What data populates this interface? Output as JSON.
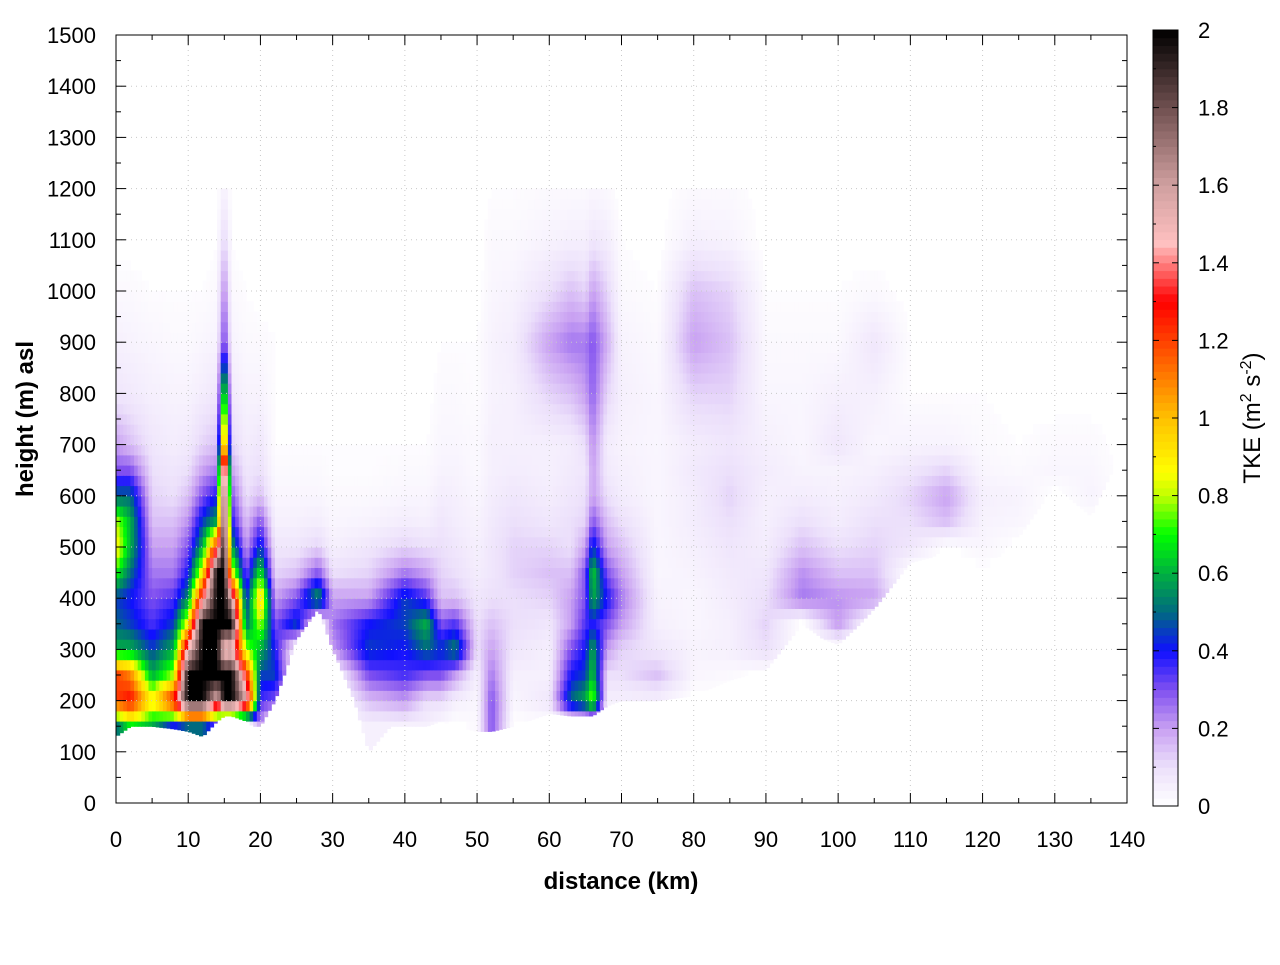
{
  "chart_data": {
    "type": "heatmap",
    "xlabel": "distance (km)",
    "ylabel": "height (m) asl",
    "colorbar_label": "TKE (m",
    "colorbar_label_sup1": "2",
    "colorbar_label_mid": " s",
    "colorbar_label_sup2": "-2",
    "colorbar_label_end": ")",
    "xlim": [
      0,
      140
    ],
    "ylim": [
      0,
      1500
    ],
    "zlim": [
      0,
      2
    ],
    "grid": true,
    "xticks": [
      "0",
      "10",
      "20",
      "30",
      "40",
      "50",
      "60",
      "70",
      "80",
      "90",
      "100",
      "110",
      "120",
      "130",
      "140"
    ],
    "yticks": [
      "0",
      "100",
      "200",
      "300",
      "400",
      "500",
      "600",
      "700",
      "800",
      "900",
      "1000",
      "1100",
      "1200",
      "1300",
      "1400",
      "1500"
    ],
    "zticks": [
      "0",
      "0.2",
      "0.4",
      "0.6",
      "0.8",
      "1",
      "1.2",
      "1.4",
      "1.6",
      "1.8",
      "2"
    ],
    "palette": [
      [
        0,
        "#ffffff"
      ],
      [
        0.1,
        "#ece0fb"
      ],
      [
        0.2,
        "#c8a0f2"
      ],
      [
        0.3,
        "#8050f0"
      ],
      [
        0.4,
        "#1010ff"
      ],
      [
        0.5,
        "#006a80"
      ],
      [
        0.6,
        "#00b040"
      ],
      [
        0.7,
        "#00ff00"
      ],
      [
        0.8,
        "#c0ff00"
      ],
      [
        0.86,
        "#ffff00"
      ],
      [
        1.0,
        "#ffc000"
      ],
      [
        1.1,
        "#ff8000"
      ],
      [
        1.2,
        "#ff4000"
      ],
      [
        1.3,
        "#ff0000"
      ],
      [
        1.45,
        "#ffc0c0"
      ],
      [
        1.6,
        "#d0a0a0"
      ],
      [
        1.8,
        "#705050"
      ],
      [
        2.0,
        "#000000"
      ]
    ],
    "x": [
      0,
      2,
      5,
      8,
      10,
      12,
      14,
      15,
      16,
      18,
      20,
      22,
      25,
      28,
      30,
      35,
      40,
      43,
      45,
      47,
      50,
      52,
      55,
      60,
      63,
      65,
      66,
      68,
      70,
      75,
      80,
      85,
      90,
      95,
      100,
      105,
      110,
      115,
      120,
      125,
      130,
      135,
      140
    ],
    "y": [
      150,
      200,
      250,
      300,
      350,
      400,
      450,
      500,
      550,
      600,
      650,
      700,
      800,
      900,
      1000,
      1100,
      1200
    ],
    "z": [
      [
        0.5,
        0.7,
        0.6,
        0.4,
        0.5,
        0.5,
        0.3,
        0,
        0,
        0,
        0.2,
        0,
        0,
        0,
        0,
        0.05,
        0.05,
        0.05,
        0.02,
        0,
        0.02,
        0.3,
        0,
        0,
        0,
        0,
        0,
        0,
        0,
        0,
        0,
        0,
        0,
        0,
        0,
        0,
        0,
        0,
        0,
        0,
        0,
        0,
        0
      ],
      [
        1.2,
        1.3,
        0.9,
        1.3,
        2,
        2,
        1.5,
        2,
        2,
        1.6,
        0.35,
        0.3,
        0,
        0,
        0,
        0.15,
        0.2,
        0.1,
        0.1,
        0.05,
        0.03,
        0.3,
        0.03,
        0.08,
        0.5,
        0.6,
        0.8,
        0.05,
        0.05,
        0.05,
        0,
        0,
        0,
        0,
        0,
        0,
        0,
        0,
        0,
        0,
        0,
        0,
        0
      ],
      [
        1.2,
        1.1,
        0.6,
        0.8,
        2,
        2,
        2,
        2,
        2,
        1.3,
        0.45,
        0.45,
        0,
        0,
        0,
        0.3,
        0.35,
        0.3,
        0.3,
        0.2,
        0.05,
        0.25,
        0.05,
        0.05,
        0.4,
        0.45,
        0.65,
        0.1,
        0.1,
        0.15,
        0.03,
        0.02,
        0,
        0,
        0,
        0,
        0,
        0,
        0,
        0,
        0,
        0,
        0
      ],
      [
        0.6,
        0.6,
        0.45,
        0.6,
        1.5,
        2,
        2,
        1.4,
        1.5,
        0.8,
        0.6,
        0.4,
        0,
        0,
        0.2,
        0.45,
        0.4,
        0.5,
        0.45,
        0.55,
        0.1,
        0.2,
        0.08,
        0.05,
        0.3,
        0.4,
        0.6,
        0.2,
        0.12,
        0.08,
        0.04,
        0.05,
        0.1,
        0,
        0,
        0,
        0,
        0,
        0,
        0,
        0,
        0,
        0
      ],
      [
        0.5,
        0.45,
        0.35,
        0.45,
        0.9,
        2,
        2,
        2,
        2,
        0.5,
        0.8,
        0.3,
        0.45,
        0,
        0.25,
        0.4,
        0.45,
        0.6,
        0.3,
        0.35,
        0.1,
        0.15,
        0.1,
        0.08,
        0.2,
        0.35,
        0.4,
        0.3,
        0.2,
        0.05,
        0.03,
        0.05,
        0.12,
        0,
        0.2,
        0,
        0,
        0,
        0,
        0,
        0,
        0,
        0
      ],
      [
        0.45,
        0.4,
        0.3,
        0.35,
        0.55,
        1.4,
        2,
        2,
        1.6,
        0.4,
        1.0,
        0.2,
        0.3,
        0.6,
        0.2,
        0.2,
        0.45,
        0.35,
        0.15,
        0.15,
        0.08,
        0.1,
        0.1,
        0.12,
        0.2,
        0.3,
        0.6,
        0.4,
        0.25,
        0.04,
        0.03,
        0.06,
        0.1,
        0.25,
        0.22,
        0.2,
        0,
        0,
        0,
        0,
        0,
        0,
        0
      ],
      [
        0.7,
        0.5,
        0.25,
        0.25,
        0.4,
        0.9,
        2,
        2,
        0.9,
        0.3,
        0.7,
        0.12,
        0.15,
        0.3,
        0.1,
        0.12,
        0.25,
        0.2,
        0.12,
        0.1,
        0.06,
        0.08,
        0.12,
        0.15,
        0.15,
        0.3,
        0.65,
        0.3,
        0.2,
        0.03,
        0.04,
        0.07,
        0.08,
        0.22,
        0.15,
        0.15,
        0,
        0,
        0,
        0,
        0,
        0,
        0
      ],
      [
        0.9,
        0.6,
        0.2,
        0.2,
        0.3,
        0.6,
        1.3,
        2,
        0.6,
        0.2,
        0.45,
        0.08,
        0.08,
        0.12,
        0.05,
        0.08,
        0.12,
        0.1,
        0.1,
        0.08,
        0.05,
        0.08,
        0.12,
        0.12,
        0.1,
        0.2,
        0.45,
        0.2,
        0.15,
        0.03,
        0.05,
        0.08,
        0.06,
        0.15,
        0.1,
        0.12,
        0.08,
        0,
        0.03,
        0,
        0,
        0,
        0
      ],
      [
        0.8,
        0.6,
        0.15,
        0.15,
        0.22,
        0.45,
        0.6,
        2,
        0.4,
        0.15,
        0.3,
        0.05,
        0.05,
        0.06,
        0.03,
        0.04,
        0.06,
        0.05,
        0.08,
        0.06,
        0.04,
        0.07,
        0.1,
        0.08,
        0.1,
        0.12,
        0.3,
        0.15,
        0.1,
        0.03,
        0.06,
        0.1,
        0.05,
        0.1,
        0.06,
        0.1,
        0.1,
        0.15,
        0.04,
        0.03,
        0,
        0,
        0
      ],
      [
        0.5,
        0.5,
        0.12,
        0.1,
        0.15,
        0.3,
        0.4,
        2,
        0.3,
        0.1,
        0.15,
        0.03,
        0.03,
        0.03,
        0.02,
        0.02,
        0.03,
        0.03,
        0.06,
        0.05,
        0.03,
        0.06,
        0.08,
        0.06,
        0.08,
        0.1,
        0.2,
        0.1,
        0.06,
        0.03,
        0.06,
        0.12,
        0.05,
        0.06,
        0.05,
        0.07,
        0.12,
        0.2,
        0.05,
        0.04,
        0,
        0.04,
        0
      ],
      [
        0.3,
        0.3,
        0.1,
        0.08,
        0.1,
        0.2,
        0.25,
        1.8,
        0.2,
        0.08,
        0.1,
        0.02,
        0.02,
        0.02,
        0.01,
        0.01,
        0.02,
        0.02,
        0.04,
        0.04,
        0.02,
        0.05,
        0.06,
        0.05,
        0.07,
        0.08,
        0.2,
        0.07,
        0.05,
        0.03,
        0.07,
        0.1,
        0.06,
        0.04,
        0.04,
        0.05,
        0.08,
        0.12,
        0.03,
        0.02,
        0.03,
        0.03,
        0
      ],
      [
        0.2,
        0.15,
        0.08,
        0.06,
        0.07,
        0.12,
        0.15,
        1.2,
        0.12,
        0.06,
        0.08,
        0.01,
        0.01,
        0.01,
        0.01,
        0.01,
        0.01,
        0.01,
        0.03,
        0.03,
        0.02,
        0.05,
        0.05,
        0.05,
        0.06,
        0.1,
        0.22,
        0.06,
        0.04,
        0.03,
        0.06,
        0.08,
        0.05,
        0.03,
        0.08,
        0.03,
        0.04,
        0.04,
        0.02,
        0.01,
        0.02,
        0.02,
        0
      ],
      [
        0.08,
        0.07,
        0.05,
        0.04,
        0.04,
        0.06,
        0.08,
        0.8,
        0.07,
        0.04,
        0.04,
        0.01,
        0,
        0,
        0,
        0,
        0,
        0,
        0.02,
        0.02,
        0.01,
        0.04,
        0.05,
        0.12,
        0.15,
        0.2,
        0.28,
        0.12,
        0.05,
        0.03,
        0.12,
        0.12,
        0.03,
        0.03,
        0.05,
        0.05,
        0.01,
        0.01,
        0.01,
        0,
        0,
        0,
        0
      ],
      [
        0.05,
        0.04,
        0.03,
        0.02,
        0.02,
        0.03,
        0.04,
        0.35,
        0.04,
        0.02,
        0.02,
        0.01,
        0,
        0,
        0,
        0,
        0,
        0,
        0.01,
        0.01,
        0.01,
        0.04,
        0.06,
        0.2,
        0.25,
        0.25,
        0.3,
        0.18,
        0.04,
        0.02,
        0.2,
        0.15,
        0.02,
        0.02,
        0.02,
        0.08,
        0.01,
        0,
        0,
        0,
        0,
        0,
        0
      ],
      [
        0.02,
        0.02,
        0.01,
        0.01,
        0.01,
        0.01,
        0.02,
        0.25,
        0.02,
        0.01,
        0,
        0,
        0,
        0,
        0,
        0,
        0,
        0,
        0,
        0,
        0,
        0.03,
        0.04,
        0.1,
        0.15,
        0.12,
        0.2,
        0.12,
        0.02,
        0.01,
        0.15,
        0.12,
        0.01,
        0.01,
        0.01,
        0.02,
        0,
        0,
        0,
        0,
        0,
        0,
        0
      ],
      [
        0,
        0,
        0,
        0,
        0,
        0,
        0.01,
        0.12,
        0.01,
        0,
        0,
        0,
        0,
        0,
        0,
        0,
        0,
        0,
        0,
        0,
        0,
        0.02,
        0.02,
        0.04,
        0.05,
        0.05,
        0.08,
        0.06,
        0.01,
        0,
        0.05,
        0.04,
        0,
        0,
        0,
        0,
        0,
        0,
        0,
        0,
        0,
        0,
        0
      ],
      [
        0,
        0,
        0,
        0,
        0,
        0,
        0,
        0.05,
        0,
        0,
        0,
        0,
        0,
        0,
        0,
        0,
        0,
        0,
        0,
        0,
        0,
        0.01,
        0.01,
        0.02,
        0.02,
        0.02,
        0.03,
        0.02,
        0,
        0,
        0.02,
        0.02,
        0,
        0,
        0,
        0,
        0,
        0,
        0,
        0,
        0,
        0,
        0
      ]
    ],
    "terrain": {
      "x": [
        0,
        2,
        5,
        8,
        10,
        12,
        14,
        15,
        16,
        18,
        19,
        20,
        22,
        25,
        28,
        30,
        33,
        35,
        38,
        40,
        43,
        45,
        47,
        50,
        52,
        55,
        60,
        63,
        66,
        68,
        70,
        75,
        80,
        85,
        90,
        95,
        98,
        100,
        103,
        105,
        110,
        113,
        115,
        120,
        125,
        130,
        135,
        138
      ],
      "height": [
        130,
        150,
        150,
        145,
        140,
        130,
        160,
        170,
        170,
        160,
        150,
        150,
        200,
        320,
        380,
        300,
        200,
        100,
        150,
        150,
        150,
        160,
        150,
        140,
        140,
        150,
        175,
        170,
        170,
        190,
        200,
        200,
        210,
        240,
        260,
        350,
        320,
        310,
        350,
        380,
        470,
        480,
        500,
        450,
        520,
        620,
        560,
        650
      ]
    },
    "data_xmax": 138
  }
}
